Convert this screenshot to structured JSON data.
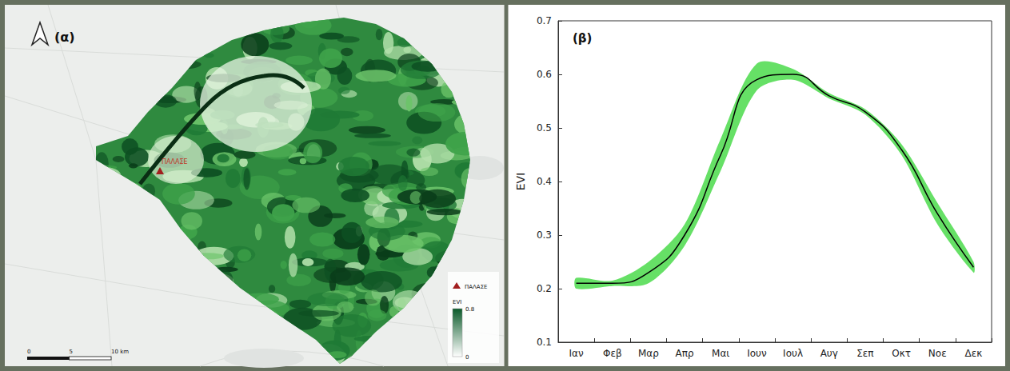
{
  "map_panel": {
    "panel_label": "(α)",
    "marker": {
      "label": "ΠΑΛΑΣΕ"
    },
    "legend": {
      "marker_label": "ΠΑΛΑΣΕ",
      "colorbar": {
        "title": "EVI",
        "range": [
          0,
          0.8
        ],
        "ticks": [
          0.8,
          0
        ]
      }
    },
    "scale_bar": {
      "ticks": [
        {
          "value": 0,
          "label": "0"
        },
        {
          "value": 5,
          "label": "5"
        },
        {
          "value": 10,
          "label": "10 km"
        }
      ]
    }
  },
  "chart_data": {
    "type": "line",
    "panel_label": "(β)",
    "y_label": "EVI",
    "categories": [
      "Ιαν",
      "Φεβ",
      "Μαρ",
      "Απρ",
      "Μαι",
      "Ιουν",
      "Ιουλ",
      "Αυγ",
      "Σεπ",
      "Οκτ",
      "Νοε",
      "Δεκ"
    ],
    "values": [
      0.21,
      0.21,
      0.23,
      0.3,
      0.45,
      0.59,
      0.6,
      0.56,
      0.53,
      0.46,
      0.34,
      0.24
    ],
    "color": "#000000",
    "band": {
      "upper": [
        0.22,
        0.215,
        0.25,
        0.32,
        0.48,
        0.62,
        0.61,
        0.565,
        0.535,
        0.47,
        0.36,
        0.25
      ],
      "lower": [
        0.2,
        0.205,
        0.21,
        0.28,
        0.42,
        0.57,
        0.59,
        0.555,
        0.525,
        0.45,
        0.32,
        0.23
      ],
      "color": "#66e066"
    },
    "ylim": [
      0.1,
      0.7
    ],
    "yticks": [
      0.1,
      0.2,
      0.3,
      0.4,
      0.5,
      0.6,
      0.7
    ],
    "grid": false
  }
}
